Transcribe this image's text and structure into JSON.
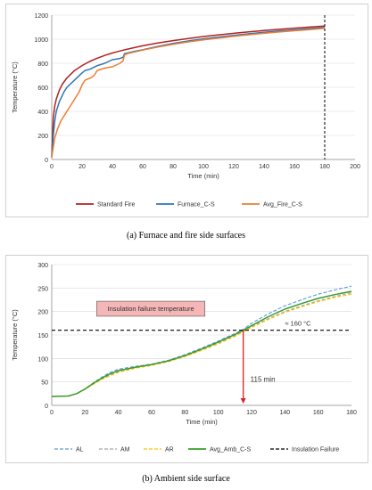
{
  "captions": {
    "a": "(a)  Furnace and fire side surfaces",
    "b": "(b)  Ambient side surface"
  },
  "chart_data": [
    {
      "type": "line",
      "title": "",
      "xlabel": "Time (min)",
      "ylabel": "Temperature (°C)",
      "xlim": [
        0,
        200
      ],
      "ylim": [
        0,
        1200
      ],
      "xticks": [
        "0",
        "20",
        "40",
        "60",
        "80",
        "100",
        "120",
        "140",
        "160",
        "180",
        "200"
      ],
      "yticks": [
        "0",
        "200",
        "400",
        "600",
        "800",
        "1000",
        "1200"
      ],
      "grid": true,
      "legend_position": "bottom",
      "vertical_marker": {
        "x": 180,
        "color": "#000000"
      },
      "series": [
        {
          "name": "Standard Fire",
          "color": "#b22222",
          "x": [
            0,
            1,
            2,
            3,
            5,
            7,
            10,
            15,
            20,
            25,
            30,
            35,
            40,
            45,
            50,
            60,
            70,
            80,
            90,
            100,
            110,
            120,
            130,
            140,
            150,
            160,
            170,
            180
          ],
          "y": [
            20,
            349,
            445,
            502,
            576,
            626,
            678,
            739,
            781,
            815,
            842,
            865,
            885,
            902,
            918,
            945,
            968,
            988,
            1006,
            1022,
            1036,
            1049,
            1061,
            1072,
            1082,
            1092,
            1101,
            1110
          ]
        },
        {
          "name": "Furnace_C-S",
          "color": "#2e75b6",
          "x": [
            0,
            1,
            2,
            3,
            5,
            8,
            10,
            15,
            20,
            22,
            25,
            30,
            35,
            40,
            45,
            47,
            48,
            50,
            55,
            60,
            70,
            80,
            90,
            100,
            110,
            120,
            130,
            140,
            150,
            160,
            170,
            180
          ],
          "y": [
            20,
            200,
            320,
            400,
            480,
            560,
            600,
            660,
            720,
            740,
            750,
            780,
            800,
            830,
            840,
            850,
            880,
            885,
            900,
            912,
            940,
            965,
            985,
            1003,
            1018,
            1032,
            1045,
            1057,
            1068,
            1078,
            1088,
            1097
          ]
        },
        {
          "name": "Avg_Fire_C-S",
          "color": "#ed7d31",
          "x": [
            0,
            2,
            4,
            6,
            8,
            10,
            12,
            15,
            18,
            20,
            22,
            24,
            26,
            28,
            30,
            35,
            40,
            45,
            47,
            48,
            50,
            55,
            60,
            70,
            80,
            90,
            100,
            110,
            120,
            130,
            140,
            150,
            160,
            170,
            180
          ],
          "y": [
            20,
            180,
            260,
            320,
            360,
            400,
            440,
            500,
            560,
            620,
            660,
            670,
            680,
            700,
            740,
            760,
            770,
            800,
            820,
            870,
            880,
            895,
            910,
            935,
            958,
            978,
            995,
            1010,
            1024,
            1037,
            1049,
            1060,
            1070,
            1080,
            1090
          ]
        }
      ]
    },
    {
      "type": "line",
      "title": "",
      "xlabel": "Time (min)",
      "ylabel": "Temperature (°C)",
      "xlim": [
        0,
        180
      ],
      "ylim": [
        0,
        300
      ],
      "xticks": [
        "0",
        "20",
        "40",
        "60",
        "80",
        "100",
        "120",
        "140",
        "160",
        "180"
      ],
      "yticks": [
        "0",
        "50",
        "100",
        "150",
        "200",
        "250",
        "300"
      ],
      "grid": true,
      "legend_position": "bottom",
      "annotations": {
        "box_label": "Insulation failure temperature",
        "temp_label": "≈ 160 °C",
        "time_label": "115 min",
        "marker_x": 115,
        "marker_y": 160
      },
      "series": [
        {
          "name": "AL",
          "color": "#5b9bd5",
          "dash": "4,2",
          "x": [
            0,
            10,
            15,
            20,
            25,
            30,
            35,
            40,
            50,
            60,
            70,
            80,
            90,
            100,
            110,
            115,
            120,
            130,
            140,
            150,
            160,
            170,
            180
          ],
          "y": [
            19,
            20,
            25,
            35,
            48,
            60,
            70,
            77,
            83,
            88,
            96,
            108,
            122,
            137,
            153,
            162,
            175,
            195,
            212,
            225,
            237,
            246,
            254
          ]
        },
        {
          "name": "AM",
          "color": "#a5a5a5",
          "dash": "4,2",
          "x": [
            0,
            10,
            15,
            20,
            25,
            30,
            35,
            40,
            50,
            60,
            70,
            80,
            90,
            100,
            110,
            115,
            120,
            130,
            140,
            150,
            160,
            170,
            180
          ],
          "y": [
            19,
            20,
            25,
            35,
            46,
            56,
            65,
            72,
            80,
            86,
            94,
            105,
            118,
            133,
            149,
            159,
            168,
            185,
            200,
            212,
            223,
            232,
            240
          ]
        },
        {
          "name": "AR",
          "color": "#ffc000",
          "dash": "4,2",
          "x": [
            0,
            10,
            15,
            20,
            25,
            30,
            35,
            40,
            50,
            60,
            70,
            80,
            90,
            100,
            110,
            115,
            120,
            130,
            140,
            150,
            160,
            170,
            180
          ],
          "y": [
            19,
            20,
            25,
            34,
            45,
            55,
            63,
            70,
            79,
            85,
            93,
            104,
            117,
            131,
            147,
            157,
            166,
            183,
            198,
            210,
            221,
            230,
            237
          ]
        },
        {
          "name": "Avg_Amb_C-S",
          "color": "#3a9b2c",
          "x": [
            0,
            10,
            15,
            20,
            25,
            30,
            35,
            40,
            50,
            60,
            70,
            80,
            90,
            100,
            110,
            115,
            120,
            130,
            140,
            150,
            160,
            170,
            180
          ],
          "y": [
            19,
            20,
            25,
            35,
            47,
            58,
            67,
            74,
            81,
            87,
            95,
            106,
            120,
            135,
            151,
            160,
            170,
            189,
            205,
            217,
            228,
            236,
            243
          ]
        },
        {
          "name": "Insulation Failure",
          "color": "#000000",
          "dash": "4,3",
          "x": [
            0,
            180
          ],
          "y": [
            160,
            160
          ]
        }
      ]
    }
  ]
}
